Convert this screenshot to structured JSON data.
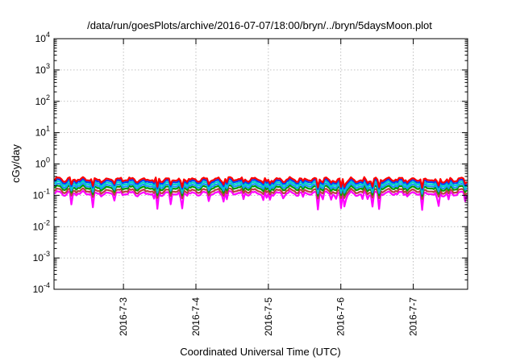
{
  "chart_data": {
    "type": "line",
    "title": "/data/run/goesPlots/archive/2016-07-07/18:00/bryn/../bryn/5daysMoon.plot",
    "xlabel": "Coordinated Universal Time (UTC)",
    "ylabel": "cGy/day",
    "yscale": "log",
    "ylim": [
      0.0001,
      10000
    ],
    "y_ticks": [
      {
        "value": 0.0001,
        "base": "10",
        "exp": "-4"
      },
      {
        "value": 0.001,
        "base": "10",
        "exp": "-3"
      },
      {
        "value": 0.01,
        "base": "10",
        "exp": "-2"
      },
      {
        "value": 0.1,
        "base": "10",
        "exp": "-1"
      },
      {
        "value": 1,
        "base": "10",
        "exp": "0"
      },
      {
        "value": 10,
        "base": "10",
        "exp": "1"
      },
      {
        "value": 100,
        "base": "10",
        "exp": "2"
      },
      {
        "value": 1000,
        "base": "10",
        "exp": "3"
      },
      {
        "value": 10000,
        "base": "10",
        "exp": "4"
      }
    ],
    "xlim": [
      "2016-07-02 01:00",
      "2016-07-07 18:00"
    ],
    "x_ticks": [
      "2016-7-3",
      "2016-7-4",
      "2016-7-5",
      "2016-7-6",
      "2016-7-7"
    ],
    "x_tick_values": [
      "2016-07-03 00:00",
      "2016-07-04 00:00",
      "2016-07-05 00:00",
      "2016-07-06 00:00",
      "2016-07-07 00:00"
    ],
    "grid": true,
    "legend": "none",
    "series": [
      {
        "color": "#ff00ff",
        "base": 0.115
      },
      {
        "color": "#b84040",
        "base": 0.14
      },
      {
        "color": "#009d00",
        "base": 0.175
      },
      {
        "color": "#1e90ff",
        "base": 0.205
      },
      {
        "color": "#00d8c0",
        "base": 0.24
      },
      {
        "color": "#0040ff",
        "base": 0.28
      },
      {
        "color": "#ff0000",
        "base": 0.32
      }
    ]
  }
}
